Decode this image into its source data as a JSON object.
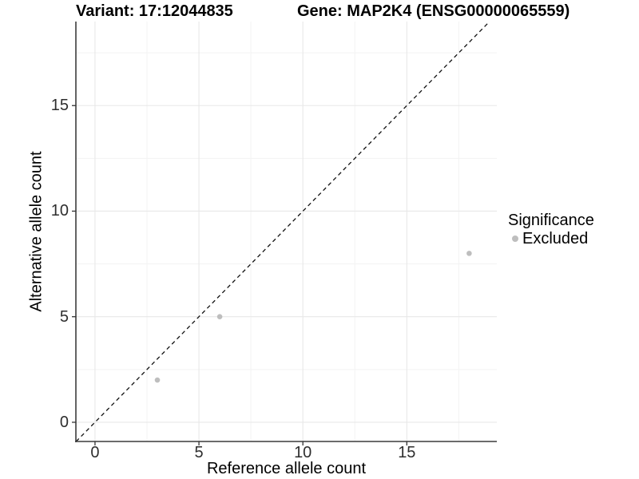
{
  "chart_data": {
    "type": "scatter",
    "titles": {
      "variant": "Variant: 17:12044835",
      "gene": "Gene: MAP2K4 (ENSG00000065559)"
    },
    "xlabel": "Reference allele count",
    "ylabel": "Alternative allele count",
    "xlim": [
      -0.92,
      19.33
    ],
    "ylim": [
      -0.91,
      18.98
    ],
    "xticks": [
      0,
      5,
      10,
      15
    ],
    "yticks": [
      0,
      5,
      10,
      15
    ],
    "xticks_minor": [
      2.5,
      7.5,
      12.5,
      17.5
    ],
    "yticks_minor": [
      2.5,
      7.5,
      12.5,
      17.5
    ],
    "grid": "major+minor",
    "series": [
      {
        "name": "Excluded",
        "color": "#bebebe",
        "points": [
          [
            3,
            2
          ],
          [
            6,
            5
          ],
          [
            18,
            8
          ]
        ]
      }
    ],
    "reference_line": {
      "type": "identity",
      "slope": 1,
      "intercept": 0,
      "style": "dashed",
      "color": "#111111"
    },
    "legend": {
      "title": "Significance",
      "position": "right",
      "entries": [
        {
          "label": "Excluded",
          "color": "#bebebe",
          "marker": "circle"
        }
      ]
    }
  },
  "colors": {
    "background": "#ffffff",
    "point": "#bebebe",
    "grid_major": "#e8e8e8",
    "grid_minor": "#f3f3f3",
    "axis_line": "#3c3c3c",
    "tick_mark": "#333333",
    "tick_label": "#2e2e2e",
    "dashed_line": "#111111"
  }
}
